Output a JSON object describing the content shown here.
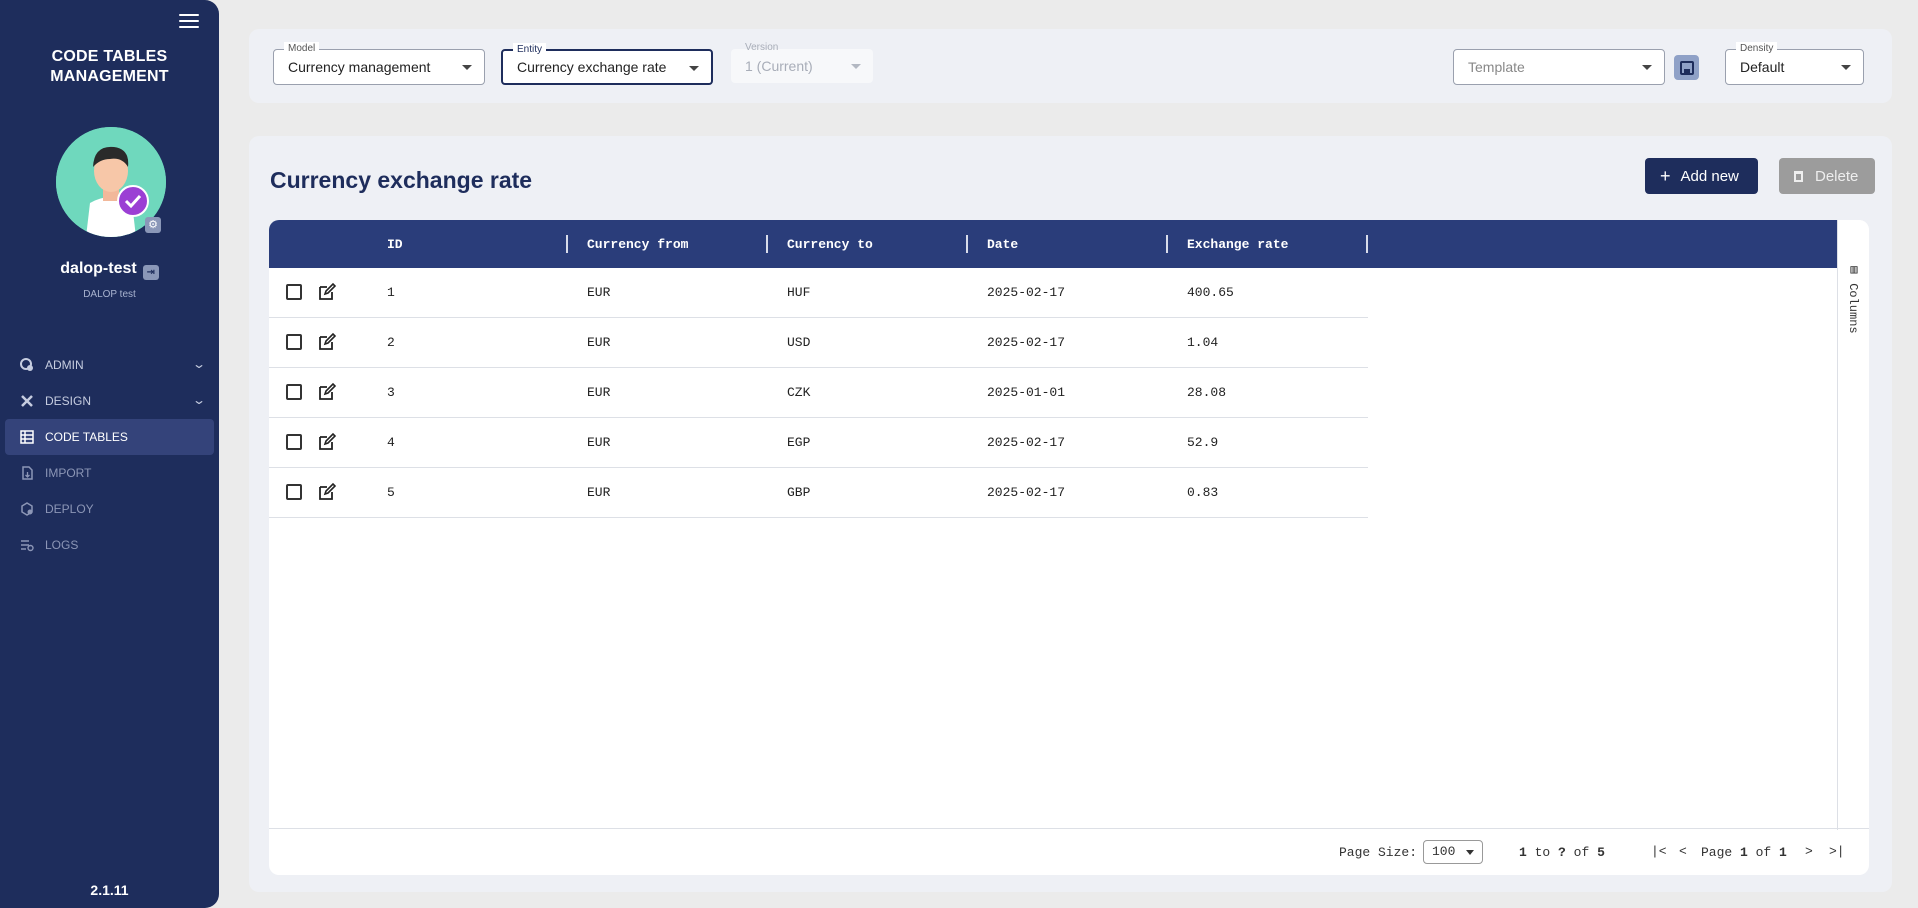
{
  "sidebar": {
    "title_line1": "CODE TABLES",
    "title_line2": "MANAGEMENT",
    "user_name": "dalop-test",
    "user_sub": "DALOP test",
    "nav": [
      {
        "label": "ADMIN",
        "icon": "admin-gear-icon",
        "expandable": true
      },
      {
        "label": "DESIGN",
        "icon": "design-tools-icon",
        "expandable": true
      },
      {
        "label": "CODE TABLES",
        "icon": "table-icon",
        "active": true
      },
      {
        "label": "IMPORT",
        "icon": "import-file-icon"
      },
      {
        "label": "DEPLOY",
        "icon": "deploy-box-icon"
      },
      {
        "label": "LOGS",
        "icon": "logs-list-icon"
      }
    ],
    "version": "2.1.11"
  },
  "filters": {
    "model_label": "Model",
    "model_value": "Currency management",
    "entity_label": "Entity",
    "entity_value": "Currency exchange rate",
    "version_label": "Version",
    "version_value": "1 (Current)",
    "template_placeholder": "Template",
    "density_label": "Density",
    "density_value": "Default"
  },
  "main": {
    "title": "Currency exchange rate",
    "add_label": "Add new",
    "delete_label": "Delete"
  },
  "grid": {
    "columns": [
      "ID",
      "Currency from",
      "Currency to",
      "Date",
      "Exchange rate"
    ],
    "rows": [
      [
        "1",
        "EUR",
        "HUF",
        "2025-02-17",
        "400.65"
      ],
      [
        "2",
        "EUR",
        "USD",
        "2025-02-17",
        "1.04"
      ],
      [
        "3",
        "EUR",
        "CZK",
        "2025-01-01",
        "28.08"
      ],
      [
        "4",
        "EUR",
        "EGP",
        "2025-02-17",
        "52.9"
      ],
      [
        "5",
        "EUR",
        "GBP",
        "2025-02-17",
        "0.83"
      ]
    ],
    "side_tab": "Columns",
    "footer": {
      "page_size_label": "Page Size:",
      "page_size_value": "100",
      "range_from": "1",
      "range_to": "?",
      "range_of": "5",
      "page_current": "1",
      "page_total": "1"
    }
  },
  "colors": {
    "sidebar_bg": "#1e2d5c",
    "header_bg": "#2a3d7a",
    "accent": "#1e2d5c",
    "delete_bg": "#9c9c9c"
  }
}
